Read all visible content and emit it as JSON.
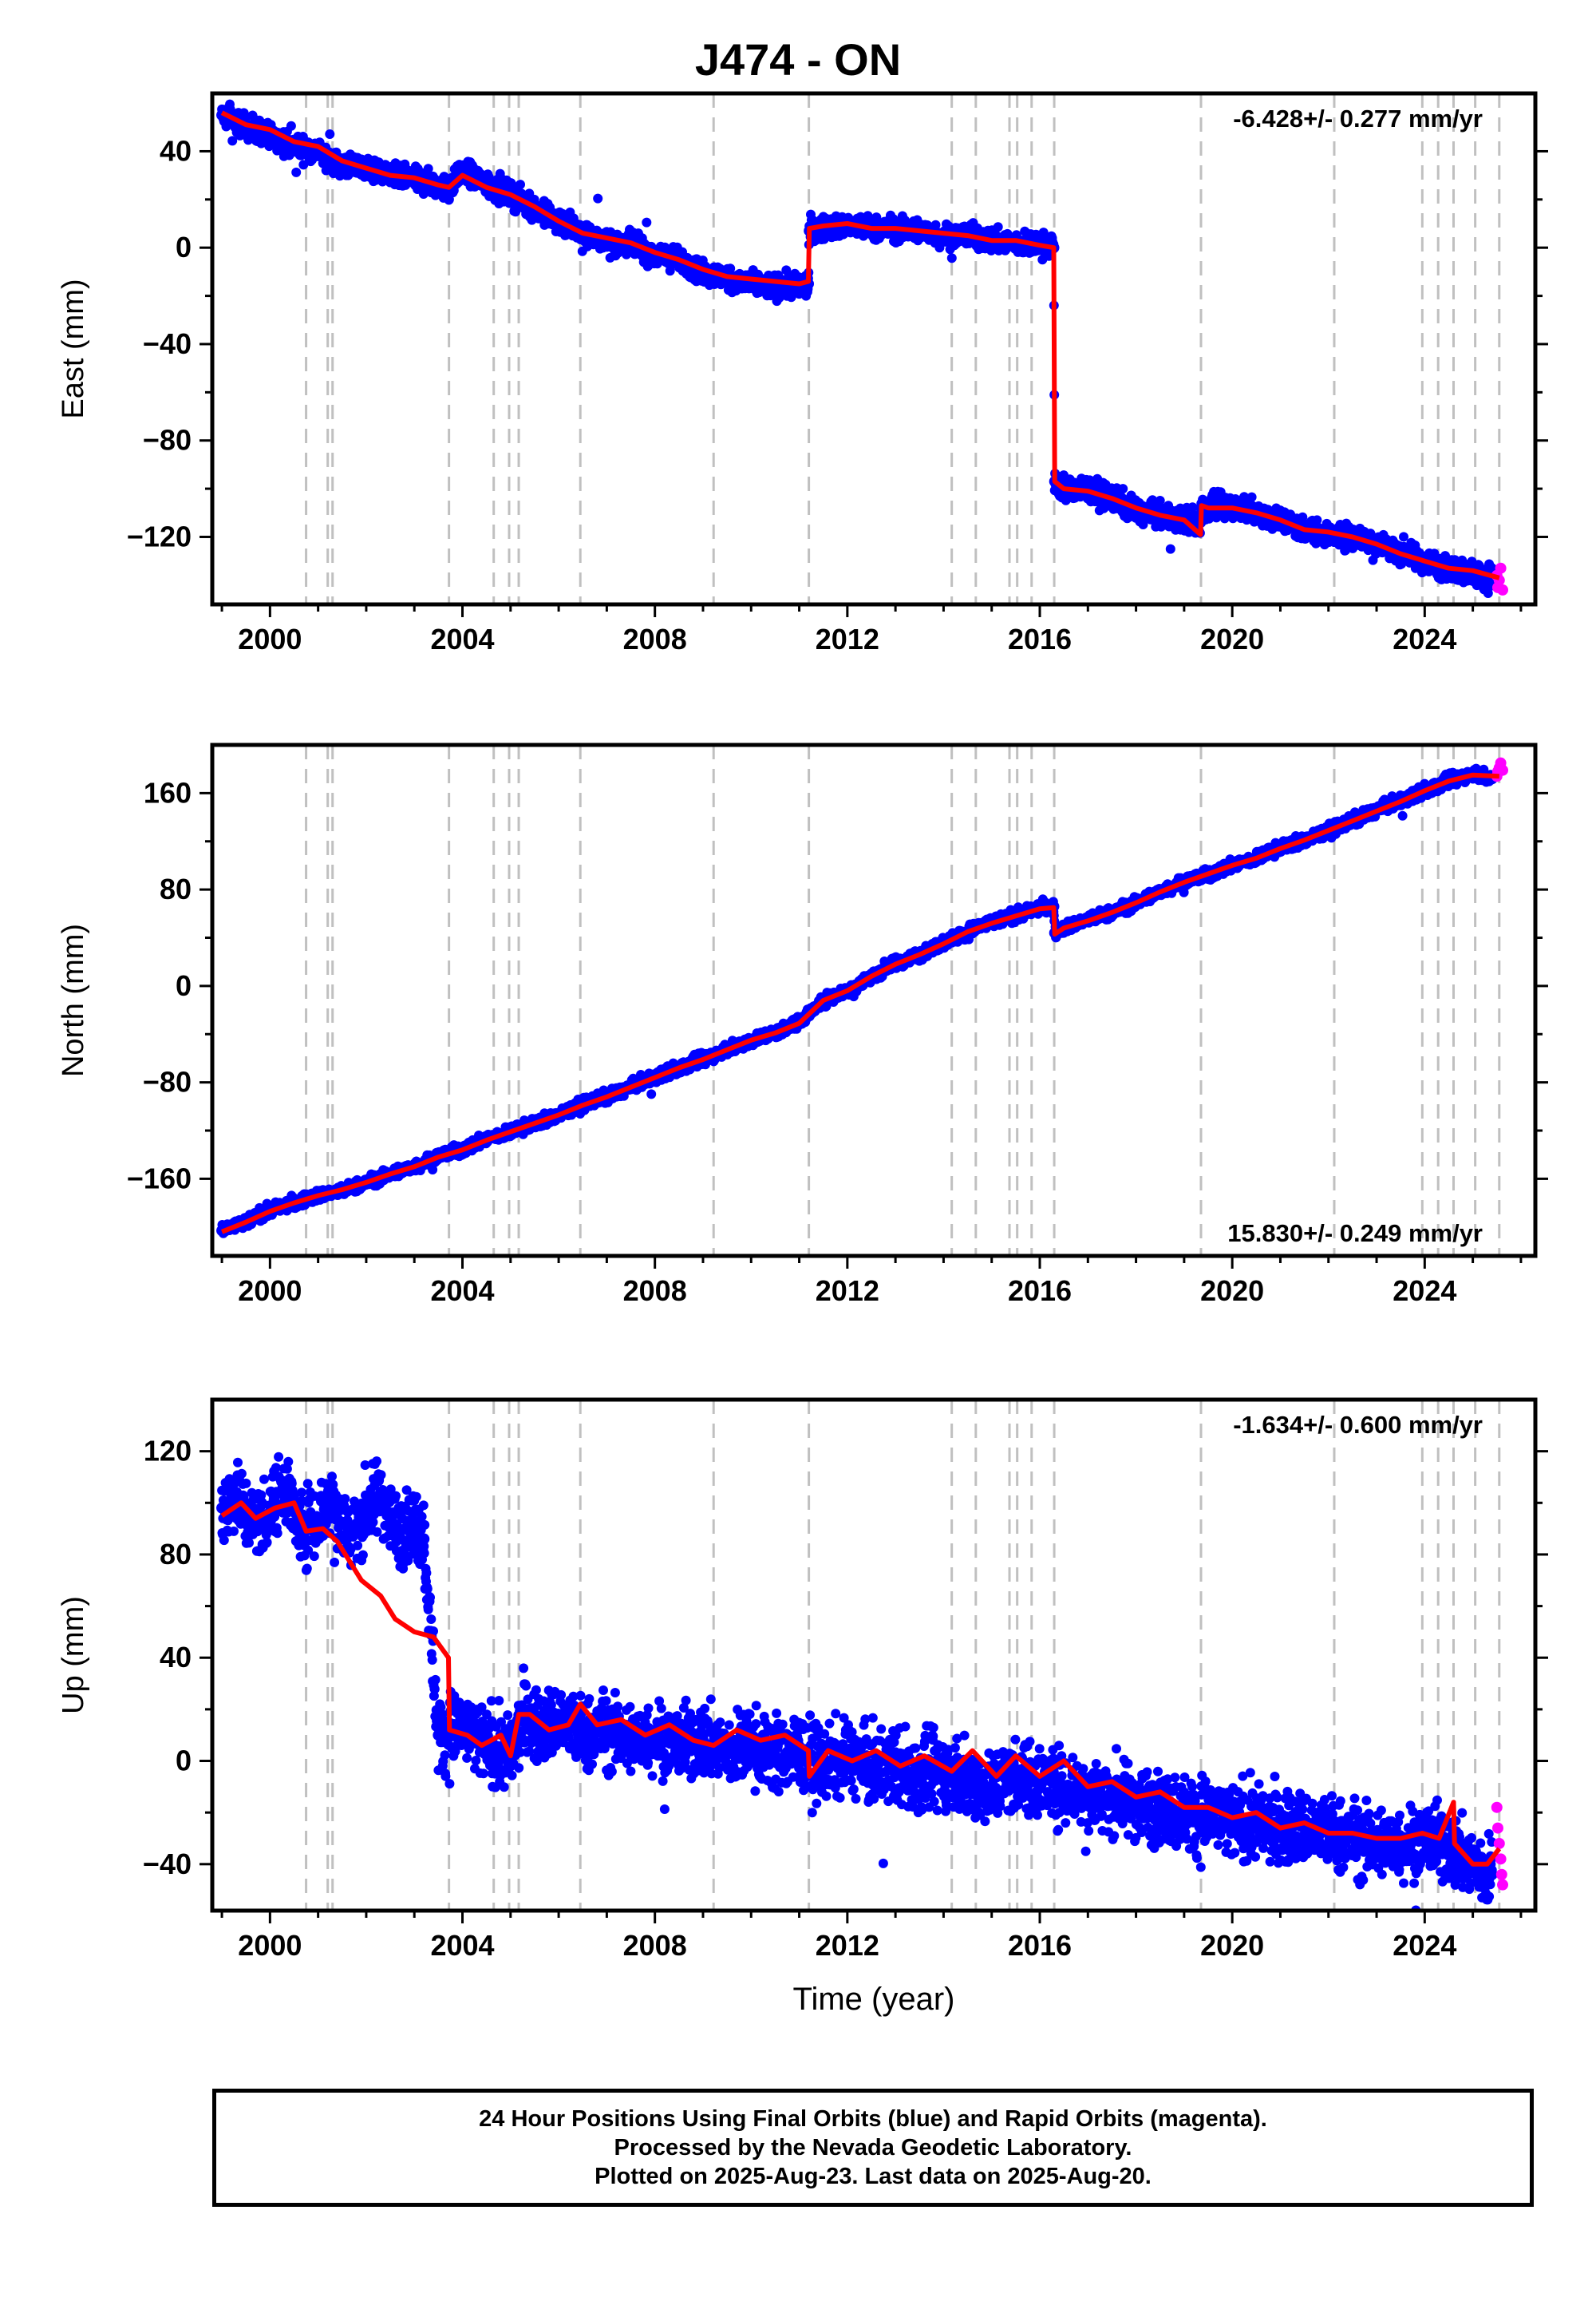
{
  "title": "J474 - ON",
  "colors": {
    "final_orbit_points": "#0000ff",
    "rapid_orbit_points": "#ff00ff",
    "model_line": "#ff0000",
    "step_lines": "#c0c0c0",
    "frame": "#000000"
  },
  "step_epochs": [
    2000.75,
    2001.2,
    2001.3,
    2003.72,
    2004.65,
    2004.97,
    2005.17,
    2006.45,
    2009.22,
    2011.2,
    2014.17,
    2014.67,
    2015.37,
    2015.53,
    2015.83,
    2016.3,
    2019.35,
    2022.12,
    2023.95,
    2024.28,
    2024.6,
    2025.05,
    2025.55
  ],
  "footer": {
    "line1": "24 Hour Positions Using Final Orbits (blue) and Rapid Orbits (magenta).",
    "line2": "Processed by the Nevada Geodetic Laboratory.",
    "line3": "Plotted on 2025-Aug-23. Last data on 2025-Aug-20."
  },
  "chart_data": [
    {
      "type": "scatter",
      "id": "east",
      "ylabel": "East (mm)",
      "xlabel": "",
      "rate_label": "-6.428+/- 0.277 mm/yr",
      "rate_position": "top-right",
      "xlim": [
        1998.8,
        2026.3
      ],
      "ylim": [
        -148,
        64
      ],
      "xticks": [
        2000,
        2004,
        2008,
        2012,
        2016,
        2020,
        2024
      ],
      "xtick_labels": [
        "2000",
        "2004",
        "2008",
        "2012",
        "2016",
        "2020",
        "2024"
      ],
      "yticks": [
        40,
        0,
        -40,
        -80,
        -120
      ],
      "ytick_labels": [
        "40",
        "0",
        "−40",
        "−80",
        "−120"
      ],
      "series": [
        {
          "kind": "final_orbits",
          "x": [
            1999.0,
            1999.5,
            2000.0,
            2000.5,
            2001.0,
            2001.5,
            2002.0,
            2002.5,
            2003.0,
            2003.5,
            2003.72,
            2004.0,
            2004.5,
            2005.0,
            2005.5,
            2006.0,
            2006.5,
            2007.0,
            2007.5,
            2008.0,
            2008.5,
            2009.0,
            2009.5,
            2010.0,
            2010.5,
            2011.0,
            2011.19,
            2011.21,
            2011.5,
            2012.0,
            2012.5,
            2013.0,
            2013.5,
            2014.0,
            2014.5,
            2015.0,
            2015.5,
            2016.0,
            2016.29,
            2016.31,
            2016.5,
            2017.0,
            2017.5,
            2018.0,
            2018.5,
            2019.0,
            2019.34,
            2019.36,
            2019.5,
            2020.0,
            2020.5,
            2021.0,
            2021.5,
            2022.0,
            2022.5,
            2023.0,
            2023.5,
            2024.0,
            2024.5,
            2025.0,
            2025.4
          ],
          "y": [
            55,
            50,
            47,
            42,
            40,
            34,
            33,
            30,
            28,
            26,
            24,
            32,
            26,
            22,
            16,
            11,
            6,
            3,
            1,
            -3,
            -5,
            -10,
            -13,
            -15,
            -16,
            -16,
            -15,
            7,
            8,
            9,
            8,
            8,
            7,
            5,
            5,
            3,
            2,
            1,
            0,
            -97,
            -100,
            -100,
            -104,
            -109,
            -112,
            -113,
            -114,
            -108,
            -108,
            -107,
            -110,
            -113,
            -117,
            -119,
            -120,
            -122,
            -126,
            -130,
            -133,
            -135,
            -137
          ]
        },
        {
          "kind": "rapid_orbits",
          "x": [
            2025.5,
            2025.52,
            2025.55,
            2025.58,
            2025.62
          ],
          "y": [
            -136,
            -141,
            -138,
            -133,
            -142
          ]
        },
        {
          "kind": "model",
          "x": [
            1999.0,
            1999.5,
            2000.0,
            2000.5,
            2001.0,
            2001.5,
            2002.0,
            2002.5,
            2003.0,
            2003.5,
            2003.72,
            2004.0,
            2004.5,
            2005.0,
            2005.5,
            2006.0,
            2006.5,
            2007.0,
            2007.5,
            2008.0,
            2008.5,
            2009.0,
            2009.5,
            2010.0,
            2010.5,
            2011.0,
            2011.19,
            2011.21,
            2011.5,
            2012.0,
            2012.5,
            2013.0,
            2013.5,
            2014.0,
            2014.5,
            2015.0,
            2015.5,
            2016.0,
            2016.29,
            2016.31,
            2016.5,
            2017.0,
            2017.5,
            2018.0,
            2018.5,
            2019.0,
            2019.34,
            2019.36,
            2019.5,
            2020.0,
            2020.5,
            2021.0,
            2021.5,
            2022.0,
            2022.5,
            2023.0,
            2023.5,
            2024.0,
            2024.5,
            2025.0,
            2025.55
          ],
          "y": [
            56,
            51,
            49,
            44,
            42,
            36,
            33,
            30,
            29,
            26,
            25,
            30,
            25,
            22,
            17,
            11,
            6,
            4,
            2,
            -2,
            -5,
            -9,
            -12,
            -13,
            -14,
            -15,
            -14,
            8,
            9,
            10,
            8,
            8,
            7,
            6,
            5,
            3,
            3,
            1,
            0,
            -97,
            -100,
            -101,
            -104,
            -108,
            -111,
            -113,
            -119,
            -107,
            -108,
            -108,
            -110,
            -113,
            -117,
            -118,
            -120,
            -123,
            -127,
            -130,
            -133,
            -134,
            -137
          ]
        }
      ]
    },
    {
      "type": "scatter",
      "id": "north",
      "ylabel": "North (mm)",
      "xlabel": "",
      "rate_label": "15.830+/- 0.249 mm/yr",
      "rate_position": "bottom-right",
      "xlim": [
        1998.8,
        2026.3
      ],
      "ylim": [
        -224,
        200
      ],
      "xticks": [
        2000,
        2004,
        2008,
        2012,
        2016,
        2020,
        2024
      ],
      "xtick_labels": [
        "2000",
        "2004",
        "2008",
        "2012",
        "2016",
        "2020",
        "2024"
      ],
      "yticks": [
        160,
        80,
        0,
        -80,
        -160
      ],
      "ytick_labels": [
        "160",
        "80",
        "0",
        "−80",
        "−160"
      ],
      "series": [
        {
          "kind": "final_orbits",
          "x": [
            1999.0,
            1999.5,
            2000.0,
            2000.5,
            2001.0,
            2001.5,
            2002.0,
            2002.5,
            2003.0,
            2003.5,
            2004.0,
            2004.5,
            2005.0,
            2005.5,
            2006.0,
            2006.5,
            2007.0,
            2007.5,
            2008.0,
            2008.5,
            2009.0,
            2009.5,
            2010.0,
            2010.5,
            2011.0,
            2011.5,
            2012.0,
            2012.5,
            2013.0,
            2013.5,
            2014.0,
            2014.5,
            2015.0,
            2015.5,
            2016.0,
            2016.29,
            2016.31,
            2016.5,
            2017.0,
            2017.5,
            2018.0,
            2018.5,
            2019.0,
            2019.5,
            2020.0,
            2020.5,
            2021.0,
            2021.5,
            2022.0,
            2022.5,
            2023.0,
            2023.5,
            2024.0,
            2024.5,
            2025.0,
            2025.4
          ],
          "y": [
            -203,
            -196,
            -186,
            -180,
            -174,
            -170,
            -163,
            -156,
            -150,
            -141,
            -136,
            -127,
            -121,
            -114,
            -107,
            -98,
            -92,
            -84,
            -76,
            -68,
            -61,
            -53,
            -45,
            -39,
            -30,
            -12,
            -4,
            8,
            19,
            26,
            36,
            45,
            53,
            58,
            65,
            66,
            44,
            48,
            55,
            61,
            69,
            78,
            87,
            92,
            100,
            106,
            115,
            121,
            129,
            137,
            146,
            153,
            162,
            170,
            176,
            172
          ]
        },
        {
          "kind": "rapid_orbits",
          "x": [
            2025.5,
            2025.52,
            2025.55,
            2025.58,
            2025.62
          ],
          "y": [
            174,
            178,
            181,
            185,
            179
          ]
        },
        {
          "kind": "model",
          "x": [
            1999.0,
            1999.5,
            2000.0,
            2000.5,
            2001.0,
            2001.5,
            2002.0,
            2002.5,
            2003.0,
            2003.5,
            2004.0,
            2004.5,
            2005.0,
            2005.5,
            2006.0,
            2006.5,
            2007.0,
            2007.5,
            2008.0,
            2008.5,
            2009.0,
            2009.5,
            2010.0,
            2010.5,
            2011.0,
            2011.5,
            2012.0,
            2012.5,
            2013.0,
            2013.5,
            2014.0,
            2014.5,
            2015.0,
            2015.5,
            2016.0,
            2016.29,
            2016.31,
            2016.5,
            2017.0,
            2017.5,
            2018.0,
            2018.5,
            2019.0,
            2019.5,
            2020.0,
            2020.5,
            2021.0,
            2021.5,
            2022.0,
            2022.5,
            2023.0,
            2023.5,
            2024.0,
            2024.5,
            2025.0,
            2025.55
          ],
          "y": [
            -204,
            -196,
            -187,
            -180,
            -174,
            -169,
            -163,
            -156,
            -150,
            -142,
            -136,
            -128,
            -121,
            -114,
            -107,
            -99,
            -92,
            -84,
            -76,
            -68,
            -61,
            -53,
            -45,
            -39,
            -31,
            -12,
            -4,
            8,
            18,
            26,
            35,
            45,
            52,
            58,
            64,
            65,
            43,
            48,
            54,
            61,
            69,
            78,
            86,
            93,
            100,
            106,
            114,
            121,
            129,
            137,
            145,
            153,
            162,
            170,
            175,
            174
          ]
        }
      ]
    },
    {
      "type": "scatter",
      "id": "up",
      "ylabel": "Up (mm)",
      "xlabel": "Time (year)",
      "rate_label": "-1.634+/- 0.600 mm/yr",
      "rate_position": "top-right",
      "xlim": [
        1998.8,
        2026.3
      ],
      "ylim": [
        -58,
        140
      ],
      "xticks": [
        2000,
        2004,
        2008,
        2012,
        2016,
        2020,
        2024
      ],
      "xtick_labels": [
        "2000",
        "2004",
        "2008",
        "2012",
        "2016",
        "2020",
        "2024"
      ],
      "yticks": [
        120,
        80,
        40,
        0,
        -40
      ],
      "ytick_labels": [
        "120",
        "80",
        "40",
        "0",
        "−40"
      ],
      "series": [
        {
          "kind": "final_orbits",
          "x": [
            1999.0,
            1999.3,
            1999.6,
            2000.0,
            2000.3,
            2000.6,
            2001.0,
            2001.3,
            2001.6,
            2002.0,
            2002.3,
            2002.6,
            2003.0,
            2003.2,
            2003.5,
            2004.0,
            2004.5,
            2005.0,
            2005.3,
            2005.6,
            2006.0,
            2006.5,
            2007.0,
            2007.5,
            2008.0,
            2008.5,
            2009.0,
            2009.5,
            2010.0,
            2010.5,
            2011.0,
            2011.5,
            2012.0,
            2012.5,
            2013.0,
            2013.5,
            2014.0,
            2014.5,
            2015.0,
            2015.5,
            2016.0,
            2016.5,
            2017.0,
            2017.5,
            2018.0,
            2018.5,
            2019.0,
            2019.5,
            2020.0,
            2020.5,
            2021.0,
            2021.5,
            2022.0,
            2022.5,
            2023.0,
            2023.5,
            2024.0,
            2024.5,
            2025.0,
            2025.4
          ],
          "y": [
            98,
            104,
            92,
            96,
            108,
            90,
            94,
            102,
            88,
            96,
            104,
            90,
            92,
            86,
            10,
            12,
            6,
            2,
            18,
            12,
            16,
            10,
            12,
            8,
            10,
            6,
            8,
            4,
            6,
            2,
            4,
            -2,
            2,
            -4,
            -2,
            -6,
            -4,
            -8,
            -10,
            -6,
            -8,
            -10,
            -12,
            -14,
            -16,
            -18,
            -20,
            -22,
            -24,
            -24,
            -26,
            -26,
            -28,
            -30,
            -32,
            -32,
            -30,
            -34,
            -40,
            -44
          ]
        },
        {
          "kind": "rapid_orbits",
          "x": [
            2025.5,
            2025.52,
            2025.55,
            2025.58,
            2025.6,
            2025.62
          ],
          "y": [
            -18,
            -26,
            -32,
            -38,
            -44,
            -48
          ]
        },
        {
          "kind": "model",
          "x": [
            1999.0,
            1999.4,
            1999.7,
            2000.1,
            2000.5,
            2000.75,
            2001.1,
            2001.4,
            2001.9,
            2002.3,
            2002.6,
            2003.0,
            2003.4,
            2003.71,
            2003.73,
            2004.1,
            2004.4,
            2004.8,
            2005.0,
            2005.17,
            2005.4,
            2005.8,
            2006.2,
            2006.45,
            2006.8,
            2007.3,
            2007.8,
            2008.3,
            2008.8,
            2009.22,
            2009.7,
            2010.2,
            2010.7,
            2011.19,
            2011.21,
            2011.6,
            2012.1,
            2012.6,
            2013.1,
            2013.6,
            2014.17,
            2014.6,
            2015.1,
            2015.5,
            2016.0,
            2016.5,
            2017.0,
            2017.5,
            2018.0,
            2018.5,
            2019.0,
            2019.5,
            2020.0,
            2020.5,
            2021.0,
            2021.5,
            2022.0,
            2022.5,
            2023.0,
            2023.5,
            2023.95,
            2024.3,
            2024.6,
            2024.62,
            2025.0,
            2025.3,
            2025.55
          ],
          "y": [
            95,
            100,
            94,
            98,
            100,
            89,
            90,
            85,
            70,
            64,
            55,
            50,
            48,
            40,
            12,
            10,
            6,
            10,
            2,
            18,
            18,
            12,
            14,
            22,
            14,
            16,
            10,
            14,
            8,
            6,
            12,
            8,
            10,
            4,
            -6,
            4,
            0,
            4,
            -2,
            2,
            -4,
            4,
            -6,
            2,
            -6,
            0,
            -10,
            -8,
            -14,
            -12,
            -18,
            -18,
            -22,
            -20,
            -26,
            -24,
            -28,
            -28,
            -30,
            -30,
            -28,
            -30,
            -16,
            -32,
            -40,
            -40,
            -34
          ]
        }
      ]
    }
  ]
}
